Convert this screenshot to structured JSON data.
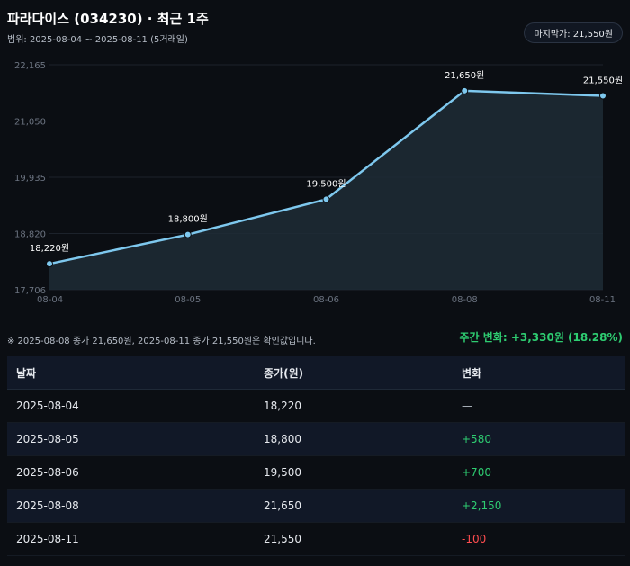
{
  "header": {
    "title": "파라다이스 (034230) · 최근 1주",
    "range": "범위: 2025-08-04 ~ 2025-08-11 (5거래일)",
    "badge": "마지막가: 21,550원"
  },
  "chart_data": {
    "type": "area",
    "categories": [
      "08-04",
      "08-05",
      "08-06",
      "08-08",
      "08-11"
    ],
    "values": [
      18220,
      18800,
      19500,
      21650,
      21550
    ],
    "data_labels": [
      "18,220원",
      "18,800원",
      "19,500원",
      "21,650원",
      "21,550원"
    ],
    "y_ticks": [
      "17,706",
      "18,820",
      "19,935",
      "21,050",
      "22,165"
    ],
    "ylim": [
      17706,
      22165
    ],
    "grid": true,
    "colors": {
      "line": "#7ec8ee",
      "fill": "#1f2b36",
      "marker": "#7ec8ee"
    }
  },
  "note": "※ 2025-08-08 종가 21,650원, 2025-08-11 종가 21,550원은 확인값입니다.",
  "summary": "주간 변화: +3,330원 (18.28%)",
  "table": {
    "headers": [
      "날짜",
      "종가(원)",
      "변화"
    ],
    "rows": [
      {
        "date": "2025-08-04",
        "close": "18,220",
        "change": "—",
        "dir": "neu"
      },
      {
        "date": "2025-08-05",
        "close": "18,800",
        "change": "+580",
        "dir": "pos"
      },
      {
        "date": "2025-08-06",
        "close": "19,500",
        "change": "+700",
        "dir": "pos"
      },
      {
        "date": "2025-08-08",
        "close": "21,650",
        "change": "+2,150",
        "dir": "pos"
      },
      {
        "date": "2025-08-11",
        "close": "21,550",
        "change": "-100",
        "dir": "neg"
      }
    ]
  }
}
